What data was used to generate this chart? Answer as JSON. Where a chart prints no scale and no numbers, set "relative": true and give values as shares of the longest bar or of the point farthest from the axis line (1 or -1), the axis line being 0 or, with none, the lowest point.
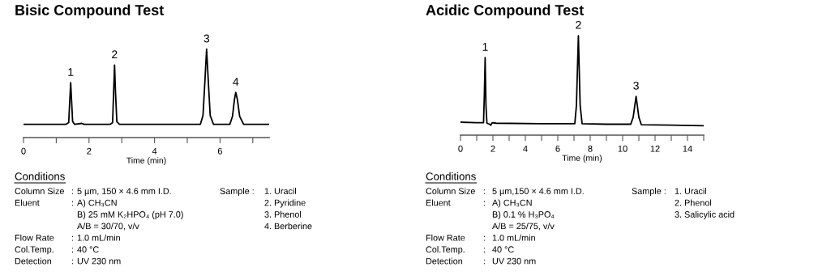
{
  "chart_data": [
    {
      "type": "line",
      "title": "Bisic Compound Test",
      "xlabel": "Time (min)",
      "relative": true,
      "legend": false,
      "grid": false,
      "marker": "none",
      "line_style": "solid",
      "xlim": [
        0,
        7.5
      ],
      "xticks": [
        0,
        {
          "value": 1,
          "label": null
        },
        2,
        {
          "value": 3,
          "label": null
        },
        4,
        {
          "value": 5,
          "label": null
        },
        6,
        {
          "value": 7,
          "label": null
        }
      ],
      "series": [
        {
          "color": "#000000",
          "x": [
            0,
            1.3,
            1.38,
            1.41,
            1.44,
            1.47,
            1.5,
            1.56,
            1.78,
            1.85,
            2.65,
            2.72,
            2.75,
            2.78,
            2.81,
            2.85,
            2.93,
            5.4,
            5.48,
            5.54,
            5.59,
            5.64,
            5.7,
            5.8,
            6.3,
            6.38,
            6.44,
            6.48,
            6.53,
            6.6,
            6.72,
            7.5
          ],
          "values": [
            0.15,
            0.15,
            0.17,
            0.4,
            0.62,
            0.4,
            0.18,
            0.15,
            0.16,
            0.15,
            0.15,
            0.17,
            0.5,
            0.82,
            0.5,
            0.18,
            0.15,
            0.15,
            0.25,
            0.65,
            1.0,
            0.65,
            0.25,
            0.15,
            0.15,
            0.24,
            0.43,
            0.51,
            0.43,
            0.24,
            0.15,
            0.15
          ]
        }
      ],
      "annotations": [
        {
          "text": "1",
          "x": 1.44,
          "y": 0.62
        },
        {
          "text": "2",
          "x": 2.78,
          "y": 0.82
        },
        {
          "text": "3",
          "x": 5.59,
          "y": 1.0
        },
        {
          "text": "4",
          "x": 6.48,
          "y": 0.51
        },
        "Conditions",
        "Column Size\nEluent\n\n\nFlow Rate\nCol.Temp.\nDetection",
        ":\n:\n\n\n:\n:\n:",
        "5 µm, 150 × 4.6 mm I.D.\nA) CH₃CN\nB) 25 mM K₂HPO₄ (pH 7.0)\nA/B = 30/70, v/v\n1.0 mL/min\n40 °C\nUV 230 nm",
        "Sample :",
        "1. Uracil\n2. Pyridine\n3. Phenol\n4. Berberine"
      ]
    },
    {
      "type": "line",
      "title": "Acidic Compound Test",
      "xlabel": "Time (min)",
      "relative": true,
      "legend": false,
      "grid": false,
      "marker": "none",
      "line_style": "solid",
      "xlim": [
        0,
        15
      ],
      "xticks": [
        0,
        {
          "value": 1,
          "label": null
        },
        2,
        {
          "value": 3,
          "label": null
        },
        4,
        {
          "value": 5,
          "label": null
        },
        6,
        {
          "value": 7,
          "label": null
        },
        8,
        {
          "value": 9,
          "label": null
        },
        10,
        {
          "value": 11,
          "label": null
        },
        12,
        {
          "value": 13,
          "label": null
        },
        14,
        {
          "value": 15,
          "label": null
        }
      ],
      "series": [
        {
          "color": "#000000",
          "x": [
            0,
            1.0,
            1.42,
            1.47,
            1.52,
            1.57,
            1.63,
            1.8,
            1.87,
            1.95,
            2.2,
            5,
            7.05,
            7.15,
            7.27,
            7.38,
            7.5,
            9,
            10.5,
            10.65,
            10.83,
            11.0,
            11.15,
            13,
            15
          ],
          "values": [
            0.13,
            0.125,
            0.125,
            0.4,
            0.78,
            0.3,
            0.12,
            0.11,
            0.1,
            0.125,
            0.12,
            0.115,
            0.115,
            0.3,
            1.0,
            0.3,
            0.115,
            0.11,
            0.11,
            0.18,
            0.39,
            0.18,
            0.105,
            0.1,
            0.095
          ]
        }
      ],
      "annotations": [
        {
          "text": "1",
          "x": 1.52,
          "y": 0.78
        },
        {
          "text": "2",
          "x": 7.27,
          "y": 1.0
        },
        {
          "text": "3",
          "x": 10.83,
          "y": 0.39
        },
        "Conditions",
        "Column Size\nEluent\n\n\nFlow Rate\nCol.Temp.\nDetection",
        ":\n:\n\n\n:\n:\n:",
        "5 µm,150 × 4.6 mm I.D.\nA) CH₃CN\nB) 0.1 % H₃PO₄\nA/B = 25/75, v/v\n1.0 mL/min\n40 °C\nUV 230 nm",
        "Sample :",
        "1. Uracil\n2. Phenol\n3. Salicylic acid"
      ]
    }
  ]
}
